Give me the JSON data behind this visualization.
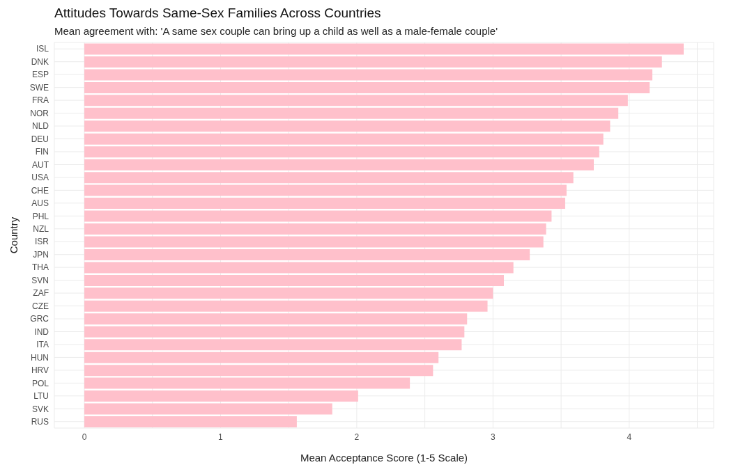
{
  "chart_data": {
    "type": "bar",
    "orientation": "horizontal",
    "title": "Attitudes Towards Same-Sex Families Across Countries",
    "subtitle": "Mean agreement with: 'A same sex couple can bring up a child as well as a male-female couple'",
    "xlabel": "Mean Acceptance Score (1-5 Scale)",
    "ylabel": "Country",
    "categories": [
      "ISL",
      "DNK",
      "ESP",
      "SWE",
      "FRA",
      "NOR",
      "NLD",
      "DEU",
      "FIN",
      "AUT",
      "USA",
      "CHE",
      "AUS",
      "PHL",
      "NZL",
      "ISR",
      "JPN",
      "THA",
      "SVN",
      "ZAF",
      "CZE",
      "GRC",
      "IND",
      "ITA",
      "HUN",
      "HRV",
      "POL",
      "LTU",
      "SVK",
      "RUS"
    ],
    "values": [
      4.4,
      4.24,
      4.17,
      4.15,
      3.99,
      3.92,
      3.86,
      3.81,
      3.78,
      3.74,
      3.59,
      3.54,
      3.53,
      3.43,
      3.39,
      3.37,
      3.27,
      3.15,
      3.08,
      3.0,
      2.96,
      2.81,
      2.79,
      2.77,
      2.6,
      2.56,
      2.39,
      2.01,
      1.82,
      1.56
    ],
    "color": "#ffc0cb",
    "xlim": [
      -0.22,
      4.62
    ],
    "xticks": [
      0,
      {
        "value": 0.5,
        "label": null
      },
      1,
      {
        "value": 1.5,
        "label": null
      },
      2,
      {
        "value": 2.5,
        "label": null
      },
      3,
      {
        "value": 3.5,
        "label": null
      },
      4,
      {
        "value": 4.5,
        "label": null
      }
    ],
    "grid": true,
    "legend": false
  }
}
